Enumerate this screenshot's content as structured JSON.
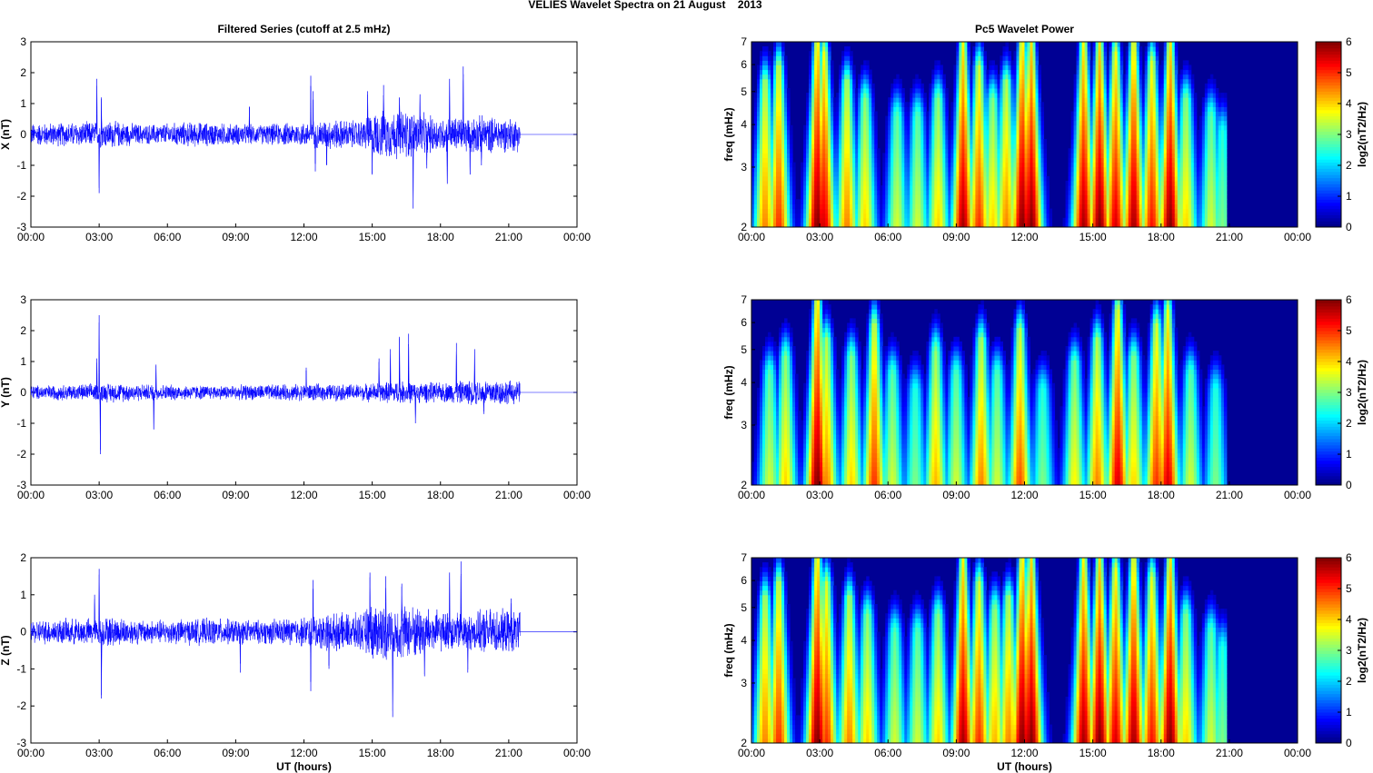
{
  "figure": {
    "title": "VELIES Wavelet Spectra on 21 August    2013"
  },
  "chart_data": [
    {
      "type": "line",
      "panel": "filtered-x",
      "title": "Filtered Series (cutoff at 2.5 mHz)",
      "ylabel": "X (nT)",
      "xlabel": "",
      "xlim": [
        0,
        24
      ],
      "ylim": [
        -3,
        3
      ],
      "xticks": [
        "00:00",
        "03:00",
        "06:00",
        "09:00",
        "12:00",
        "15:00",
        "18:00",
        "21:00",
        "00:00"
      ],
      "yticks": [
        -3,
        -2,
        -1,
        0,
        1,
        2,
        3
      ],
      "series_color": "#0000ff",
      "data_end_hour": 21.5,
      "spikes": [
        [
          2.9,
          1.8
        ],
        [
          3.0,
          -1.9
        ],
        [
          3.1,
          1.2
        ],
        [
          9.6,
          0.9
        ],
        [
          12.3,
          1.9
        ],
        [
          12.5,
          -1.2
        ],
        [
          12.4,
          1.4
        ],
        [
          13.0,
          -1.0
        ],
        [
          14.8,
          1.4
        ],
        [
          15.0,
          -1.3
        ],
        [
          15.5,
          1.6
        ],
        [
          16.2,
          1.2
        ],
        [
          16.8,
          -2.4
        ],
        [
          17.1,
          1.3
        ],
        [
          17.4,
          -1.1
        ],
        [
          18.4,
          1.8
        ],
        [
          18.3,
          -1.6
        ],
        [
          19.0,
          2.2
        ],
        [
          19.3,
          -1.3
        ],
        [
          19.8,
          -1.0
        ]
      ],
      "envelope": [
        [
          0,
          0.4
        ],
        [
          2.5,
          0.45
        ],
        [
          3.5,
          0.5
        ],
        [
          5,
          0.35
        ],
        [
          7,
          0.45
        ],
        [
          8.5,
          0.4
        ],
        [
          10,
          0.35
        ],
        [
          12,
          0.45
        ],
        [
          13,
          0.55
        ],
        [
          14.5,
          0.5
        ],
        [
          15,
          0.8
        ],
        [
          16.5,
          0.9
        ],
        [
          18,
          0.6
        ],
        [
          19.5,
          0.7
        ],
        [
          20,
          0.65
        ],
        [
          21.5,
          0.6
        ]
      ]
    },
    {
      "type": "line",
      "panel": "filtered-y",
      "title": "",
      "ylabel": "Y (nT)",
      "xlabel": "",
      "xlim": [
        0,
        24
      ],
      "ylim": [
        -3,
        3
      ],
      "xticks": [
        "00:00",
        "03:00",
        "06:00",
        "09:00",
        "12:00",
        "15:00",
        "18:00",
        "21:00",
        "00:00"
      ],
      "yticks": [
        -3,
        -2,
        -1,
        0,
        1,
        2,
        3
      ],
      "series_color": "#0000ff",
      "data_end_hour": 21.5,
      "spikes": [
        [
          3.0,
          2.5
        ],
        [
          3.05,
          -2.0
        ],
        [
          2.9,
          1.1
        ],
        [
          5.4,
          -1.2
        ],
        [
          5.5,
          0.9
        ],
        [
          12.1,
          0.8
        ],
        [
          15.3,
          1.1
        ],
        [
          15.8,
          1.4
        ],
        [
          16.2,
          1.8
        ],
        [
          16.6,
          1.9
        ],
        [
          16.9,
          -1.0
        ],
        [
          18.7,
          1.6
        ],
        [
          19.5,
          1.4
        ],
        [
          19.9,
          -0.7
        ]
      ],
      "envelope": [
        [
          0,
          0.25
        ],
        [
          2.5,
          0.3
        ],
        [
          3.5,
          0.35
        ],
        [
          5,
          0.3
        ],
        [
          8,
          0.25
        ],
        [
          12,
          0.3
        ],
        [
          14.5,
          0.3
        ],
        [
          16,
          0.4
        ],
        [
          18,
          0.35
        ],
        [
          19.5,
          0.45
        ],
        [
          20,
          0.5
        ],
        [
          21.5,
          0.4
        ]
      ]
    },
    {
      "type": "line",
      "panel": "filtered-z",
      "title": "",
      "ylabel": "Z (nT)",
      "xlabel": "UT (hours)",
      "xlim": [
        0,
        24
      ],
      "ylim": [
        -3,
        2
      ],
      "xticks": [
        "00:00",
        "03:00",
        "06:00",
        "09:00",
        "12:00",
        "15:00",
        "18:00",
        "21:00",
        "00:00"
      ],
      "yticks": [
        -3,
        -2,
        -1,
        0,
        1,
        2
      ],
      "series_color": "#0000ff",
      "data_end_hour": 21.5,
      "spikes": [
        [
          3.0,
          1.7
        ],
        [
          3.1,
          -1.8
        ],
        [
          2.8,
          1.0
        ],
        [
          9.2,
          -1.1
        ],
        [
          12.4,
          1.4
        ],
        [
          12.3,
          -1.6
        ],
        [
          13.1,
          -1.0
        ],
        [
          14.9,
          1.6
        ],
        [
          15.6,
          1.5
        ],
        [
          15.9,
          -2.3
        ],
        [
          16.3,
          1.3
        ],
        [
          17.3,
          -1.2
        ],
        [
          18.4,
          1.6
        ],
        [
          18.9,
          1.9
        ],
        [
          19.2,
          -1.1
        ],
        [
          21.1,
          0.9
        ]
      ],
      "envelope": [
        [
          0,
          0.35
        ],
        [
          2.5,
          0.4
        ],
        [
          3.5,
          0.45
        ],
        [
          5,
          0.35
        ],
        [
          8,
          0.4
        ],
        [
          10,
          0.35
        ],
        [
          12,
          0.45
        ],
        [
          13,
          0.55
        ],
        [
          14.5,
          0.55
        ],
        [
          15,
          0.85
        ],
        [
          17,
          0.8
        ],
        [
          18,
          0.6
        ],
        [
          19.5,
          0.55
        ],
        [
          20,
          0.7
        ],
        [
          21.5,
          0.6
        ]
      ]
    },
    {
      "type": "heatmap",
      "panel": "wavelet-x",
      "title": "Pc5 Wavelet Power",
      "ylabel": "freq (mHz)",
      "xlabel": "",
      "xlim": [
        0,
        24
      ],
      "ylim": [
        2,
        7
      ],
      "yscale": "log",
      "xticks": [
        "00:00",
        "03:00",
        "06:00",
        "09:00",
        "12:00",
        "15:00",
        "18:00",
        "21:00",
        "00:00"
      ],
      "yticks": [
        2,
        3,
        4,
        5,
        6,
        7
      ],
      "colorbar_label": "log2(nT2/Hz)",
      "clim": [
        0,
        6
      ],
      "colorbar_ticks": [
        0,
        1,
        2,
        3,
        4,
        5,
        6
      ],
      "colormap": "jet",
      "data_end_hour": 20.9,
      "hot_bands": [
        [
          0.6,
          4.5
        ],
        [
          1.2,
          5.0
        ],
        [
          2.9,
          6.0
        ],
        [
          3.2,
          5.5
        ],
        [
          4.2,
          4.5
        ],
        [
          5.0,
          4.0
        ],
        [
          6.4,
          3.5
        ],
        [
          7.3,
          3.5
        ],
        [
          8.2,
          4.0
        ],
        [
          9.3,
          5.8
        ],
        [
          10.0,
          5.0
        ],
        [
          10.6,
          4.0
        ],
        [
          11.2,
          4.5
        ],
        [
          11.9,
          6.0
        ],
        [
          12.3,
          6.0
        ],
        [
          14.6,
          5.8
        ],
        [
          15.3,
          6.0
        ],
        [
          16.0,
          5.5
        ],
        [
          16.8,
          5.8
        ],
        [
          17.6,
          5.2
        ],
        [
          18.4,
          6.0
        ],
        [
          19.1,
          4.0
        ],
        [
          20.2,
          3.5
        ],
        [
          20.7,
          3.0
        ]
      ]
    },
    {
      "type": "heatmap",
      "panel": "wavelet-y",
      "title": "",
      "ylabel": "freq (mHz)",
      "xlabel": "",
      "xlim": [
        0,
        24
      ],
      "ylim": [
        2,
        7
      ],
      "yscale": "log",
      "xticks": [
        "00:00",
        "03:00",
        "06:00",
        "09:00",
        "12:00",
        "15:00",
        "18:00",
        "21:00",
        "00:00"
      ],
      "yticks": [
        2,
        3,
        4,
        5,
        6,
        7
      ],
      "colorbar_label": "log2(nT2/Hz)",
      "clim": [
        0,
        6
      ],
      "colorbar_ticks": [
        0,
        1,
        2,
        3,
        4,
        5,
        6
      ],
      "colormap": "jet",
      "data_end_hour": 20.9,
      "hot_bands": [
        [
          0.8,
          3.5
        ],
        [
          1.5,
          4.0
        ],
        [
          2.9,
          6.0
        ],
        [
          3.3,
          4.5
        ],
        [
          4.4,
          4.0
        ],
        [
          5.4,
          5.0
        ],
        [
          6.2,
          3.5
        ],
        [
          7.2,
          3.0
        ],
        [
          8.1,
          4.2
        ],
        [
          9.0,
          3.5
        ],
        [
          10.1,
          4.5
        ],
        [
          10.8,
          3.5
        ],
        [
          11.8,
          4.8
        ],
        [
          12.8,
          3.0
        ],
        [
          14.2,
          3.8
        ],
        [
          15.2,
          4.5
        ],
        [
          16.1,
          5.5
        ],
        [
          16.8,
          4.0
        ],
        [
          17.8,
          5.0
        ],
        [
          18.3,
          5.5
        ],
        [
          19.3,
          3.5
        ],
        [
          20.4,
          3.0
        ]
      ]
    },
    {
      "type": "heatmap",
      "panel": "wavelet-z",
      "title": "",
      "ylabel": "freq (mHz)",
      "xlabel": "UT (hours)",
      "xlim": [
        0,
        24
      ],
      "ylim": [
        2,
        7
      ],
      "yscale": "log",
      "xticks": [
        "00:00",
        "03:00",
        "06:00",
        "09:00",
        "12:00",
        "15:00",
        "18:00",
        "21:00",
        "00:00"
      ],
      "yticks": [
        2,
        3,
        4,
        5,
        6,
        7
      ],
      "colorbar_label": "log2(nT2/Hz)",
      "clim": [
        0,
        6
      ],
      "colorbar_ticks": [
        0,
        1,
        2,
        3,
        4,
        5,
        6
      ],
      "colormap": "jet",
      "data_end_hour": 20.9,
      "hot_bands": [
        [
          0.6,
          4.5
        ],
        [
          1.2,
          5.0
        ],
        [
          2.9,
          6.0
        ],
        [
          3.3,
          5.0
        ],
        [
          4.3,
          4.5
        ],
        [
          5.1,
          4.0
        ],
        [
          6.3,
          3.5
        ],
        [
          7.3,
          3.5
        ],
        [
          8.2,
          4.0
        ],
        [
          9.3,
          5.8
        ],
        [
          10.0,
          5.0
        ],
        [
          10.7,
          4.2
        ],
        [
          11.3,
          4.5
        ],
        [
          11.9,
          6.0
        ],
        [
          12.3,
          6.0
        ],
        [
          14.6,
          5.8
        ],
        [
          15.3,
          6.0
        ],
        [
          16.0,
          5.5
        ],
        [
          16.8,
          5.8
        ],
        [
          17.6,
          5.2
        ],
        [
          18.4,
          6.0
        ],
        [
          19.1,
          4.0
        ],
        [
          20.2,
          3.5
        ],
        [
          20.7,
          3.0
        ]
      ]
    }
  ]
}
